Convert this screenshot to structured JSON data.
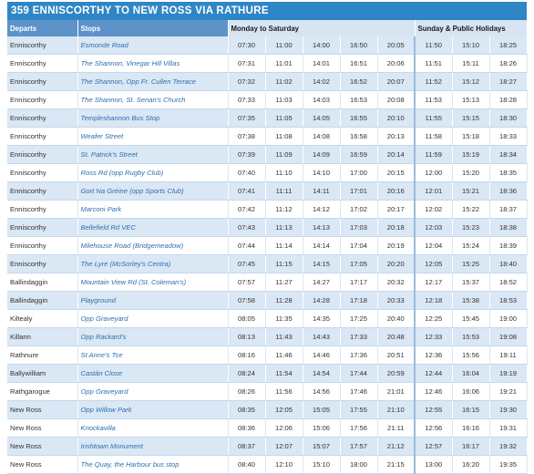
{
  "title": "359 ENNISCORTHY TO NEW ROSS VIA RATHURE",
  "table": {
    "headers": [
      "Departs",
      "Stops",
      "Monday to Saturday",
      "Sunday & Public Holidays"
    ],
    "rows": [
      [
        "Enniscorthy",
        "Esmonde Road",
        "07:30",
        "11:00",
        "14:00",
        "16:50",
        "20:05",
        "11:50",
        "15:10",
        "18:25"
      ],
      [
        "Enniscorthy",
        "The Shannon, Vinegar Hill Villas",
        "07:31",
        "11:01",
        "14:01",
        "16:51",
        "20:06",
        "11:51",
        "15:11",
        "18:26"
      ],
      [
        "Enniscorthy",
        "The Shannon, Opp Fr. Cullen Terrace",
        "07:32",
        "11:02",
        "14:02",
        "16:52",
        "20:07",
        "11:52",
        "15:12",
        "18:27"
      ],
      [
        "Enniscorthy",
        "The Shannon, St. Senan's Church",
        "07:33",
        "11:03",
        "14:03",
        "16:53",
        "20:08",
        "11:53",
        "15:13",
        "18:28"
      ],
      [
        "Enniscorthy",
        "Templeshannon Bus Stop",
        "07:35",
        "11:05",
        "14:05",
        "16:55",
        "20:10",
        "11:55",
        "15:15",
        "18:30"
      ],
      [
        "Enniscorthy",
        "Weafer Street",
        "07:38",
        "11:08",
        "14:08",
        "16:58",
        "20:13",
        "11:58",
        "15:18",
        "18:33"
      ],
      [
        "Enniscorthy",
        "St. Patrick's Street",
        "07:39",
        "11:09",
        "14:09",
        "16:59",
        "20:14",
        "11:59",
        "15:19",
        "18:34"
      ],
      [
        "Enniscorthy",
        "Ross Rd (opp Rugby Club)",
        "07:40",
        "11:10",
        "14:10",
        "17:00",
        "20:15",
        "12:00",
        "15:20",
        "18:35"
      ],
      [
        "Enniscorthy",
        "Gort Na Gréine (opp Sports Club)",
        "07:41",
        "11:11",
        "14:11",
        "17:01",
        "20:16",
        "12:01",
        "15:21",
        "18:36"
      ],
      [
        "Enniscorthy",
        "Marconi Park",
        "07:42",
        "11:12",
        "14:12",
        "17:02",
        "20:17",
        "12:02",
        "15:22",
        "18:37"
      ],
      [
        "Enniscorthy",
        "Bellefield Rd VEC",
        "07:43",
        "11:13",
        "14:13",
        "17:03",
        "20:18",
        "12:03",
        "15:23",
        "18:38"
      ],
      [
        "Enniscorthy",
        "Milehouse Road (Bridgemeadow)",
        "07:44",
        "11:14",
        "14:14",
        "17:04",
        "20:19",
        "12:04",
        "15:24",
        "18:39"
      ],
      [
        "Enniscorthy",
        "The Lyre (McSorley's Centra)",
        "07:45",
        "11:15",
        "14:15",
        "17:05",
        "20:20",
        "12:05",
        "15:25",
        "18:40"
      ],
      [
        "Ballindaggin",
        "Mountain View Rd (St. Coleman's)",
        "07:57",
        "11:27",
        "14:27",
        "17:17",
        "20:32",
        "12:17",
        "15:37",
        "18:52"
      ],
      [
        "Ballindaggin",
        "Playground",
        "07:58",
        "11:28",
        "14:28",
        "17:18",
        "20:33",
        "12:18",
        "15:38",
        "18:53"
      ],
      [
        "Kiltealy",
        "Opp Graveyard",
        "08:05",
        "11:35",
        "14:35",
        "17:25",
        "20:40",
        "12:25",
        "15:45",
        "19:00"
      ],
      [
        "Killann",
        "Opp Rackard's",
        "08:13",
        "11:43",
        "14:43",
        "17:33",
        "20:48",
        "12:33",
        "15:53",
        "19:08"
      ],
      [
        "Rathnure",
        "St Anne's Tce",
        "08:16",
        "11:46",
        "14:46",
        "17:36",
        "20:51",
        "12:36",
        "15:56",
        "19:11"
      ],
      [
        "Ballywilliam",
        "Castán Close",
        "08:24",
        "11:54",
        "14:54",
        "17:44",
        "20:59",
        "12:44",
        "16:04",
        "19:19"
      ],
      [
        "Rathgarogue",
        "Opp Graveyard",
        "08:26",
        "11:56",
        "14:56",
        "17:46",
        "21:01",
        "12:46",
        "16:06",
        "19:21"
      ],
      [
        "New Ross",
        "Opp Willow Park",
        "08:35",
        "12:05",
        "15:05",
        "17:55",
        "21:10",
        "12:55",
        "16:15",
        "19:30"
      ],
      [
        "New Ross",
        "Knockavilla",
        "08:36",
        "12:06",
        "15:06",
        "17:56",
        "21:11",
        "12:56",
        "16:16",
        "19:31"
      ],
      [
        "New Ross",
        "Irishtown Monument",
        "08:37",
        "12:07",
        "15:07",
        "17:57",
        "21:12",
        "12:57",
        "16:17",
        "19:32"
      ],
      [
        "New Ross",
        "The Quay, the Harbour bus stop",
        "08:40",
        "12:10",
        "15:10",
        "18:00",
        "21:15",
        "13:00",
        "16:20",
        "19:35"
      ]
    ]
  }
}
